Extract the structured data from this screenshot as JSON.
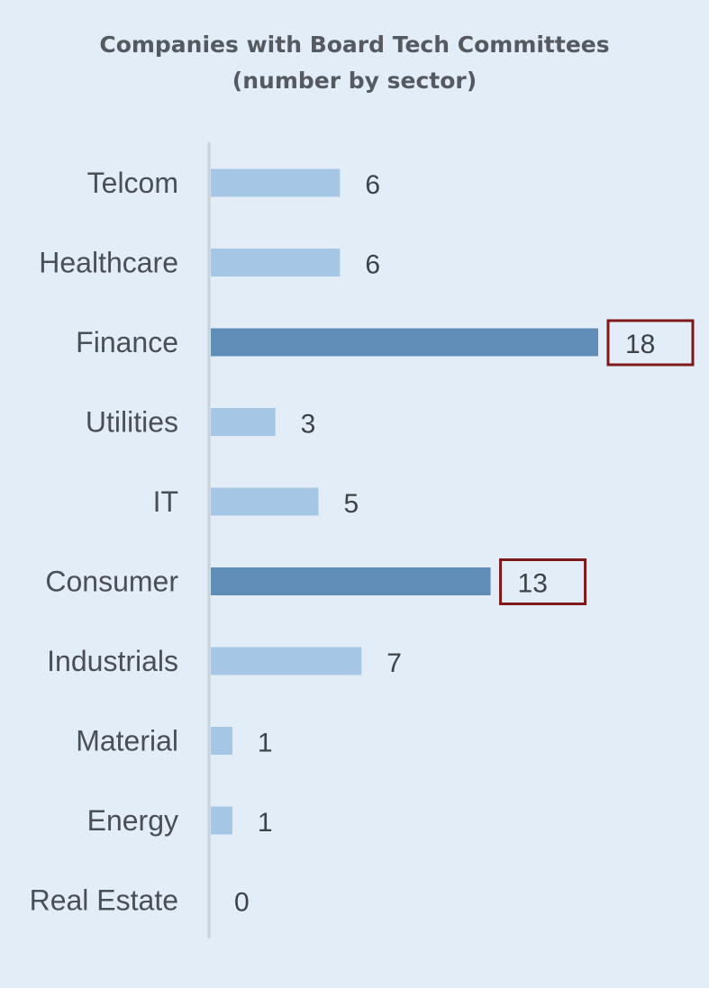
{
  "chart_data": {
    "type": "bar",
    "orientation": "horizontal",
    "title_line1": "Companies with Board  Tech Committees",
    "title_line2": "(number by sector)",
    "categories": [
      "Telcom",
      "Healthcare",
      "Finance",
      "Utilities",
      "IT",
      "Consumer",
      "Industrials",
      "Material",
      "Energy",
      "Real Estate"
    ],
    "values": [
      6,
      6,
      18,
      3,
      5,
      13,
      7,
      1,
      1,
      0
    ],
    "highlighted": [
      false,
      false,
      true,
      false,
      false,
      true,
      false,
      false,
      false,
      false
    ],
    "xlim": [
      0,
      18
    ],
    "grid": false,
    "legend": "none"
  },
  "colors": {
    "background": "#e3edf8",
    "bar": "#a6c6e5",
    "bar_highlight": "#5f8db7",
    "highlight_box": "#7e1a1a",
    "axis": "#c9d0d8",
    "title": "#555a60"
  }
}
